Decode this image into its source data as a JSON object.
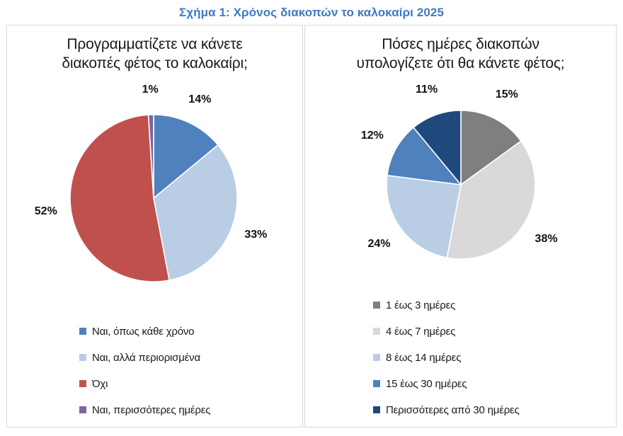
{
  "figure": {
    "title": "Σχήμα 1: Χρόνος διακοπών το καλοκαίρι 2025",
    "title_color": "#3f7ac2"
  },
  "chart_data": [
    {
      "type": "pie",
      "title": "Προγραμματίζετε να κάνετε διακοπές φέτος το καλοκαίρι;",
      "title_lines": [
        "Προγραμματίζετε να κάνετε",
        "διακοπές φέτος το καλοκαίρι;"
      ],
      "unit": "%",
      "start_angle_deg": 0,
      "direction": "clockwise",
      "data_labels": "outside-percent",
      "legend_position": "bottom-left",
      "slices": [
        {
          "label": "Ναι, όπως κάθε χρόνο",
          "value": 14,
          "color": "#4f81bd"
        },
        {
          "label": "Ναι, αλλά περιορισμένα",
          "value": 33,
          "color": "#b9cde5"
        },
        {
          "label": "Όχι",
          "value": 52,
          "color": "#c0504d"
        },
        {
          "label": "Ναι, περισσότερες ημέρες",
          "value": 1,
          "color": "#8064a2"
        }
      ]
    },
    {
      "type": "pie",
      "title": "Πόσες ημέρες διακοπών υπολογίζετε ότι θα κάνετε φέτος;",
      "title_lines": [
        "Πόσες ημέρες διακοπών",
        "υπολογίζετε ότι θα κάνετε φέτος;"
      ],
      "unit": "%",
      "start_angle_deg": 0,
      "direction": "clockwise",
      "data_labels": "outside-percent",
      "legend_position": "bottom-left",
      "slices": [
        {
          "label": "1 έως 3 ημέρες",
          "value": 15,
          "color": "#7f7f7f"
        },
        {
          "label": "4 έως 7 ημέρες",
          "value": 38,
          "color": "#d9d9d9"
        },
        {
          "label": "8 έως 14 ημέρες",
          "value": 24,
          "color": "#b9cde5"
        },
        {
          "label": "15 έως 30 ημέρες",
          "value": 12,
          "color": "#4f81bd"
        },
        {
          "label": "Περισσότερες από 30 ημέρες",
          "value": 11,
          "color": "#1f497d"
        }
      ]
    }
  ]
}
